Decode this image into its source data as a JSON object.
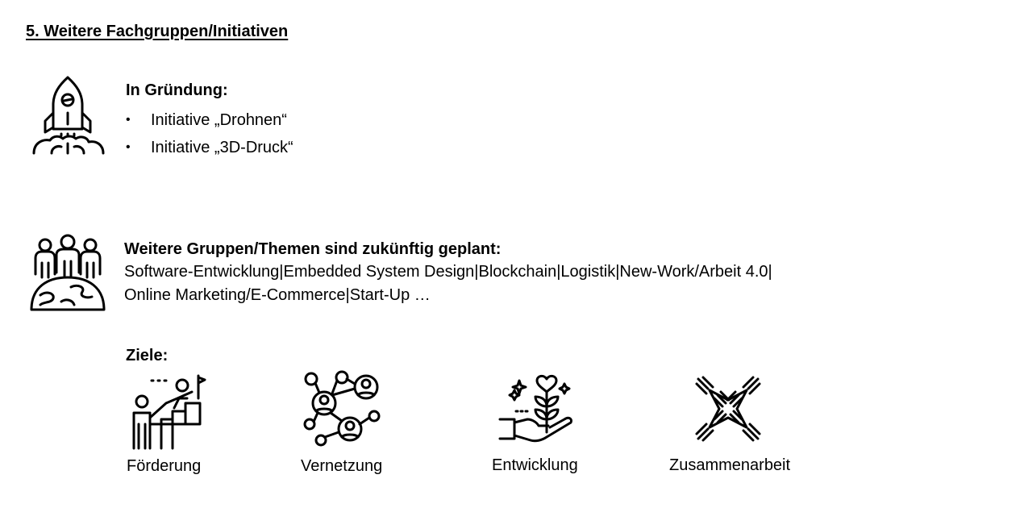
{
  "title": "5. Weitere Fachgruppen/Initiativen",
  "founding": {
    "heading": "In Gründung:",
    "bullet_symbol": "•",
    "items": [
      "Initiative „Drohnen“",
      "Initiative „3D-Druck“"
    ],
    "icon": "rocket-icon"
  },
  "planned": {
    "heading": "Weitere Gruppen/Themen sind zukünftig geplant:",
    "line1": "Software-Entwicklung|Embedded System Design|Blockchain|Logistik|New-Work/Arbeit 4.0|",
    "line2": "Online Marketing/E-Commerce|Start-Up …",
    "icon": "people-globe-icon"
  },
  "goals": {
    "heading": "Ziele:",
    "items": [
      {
        "label": "Förderung",
        "icon": "growth-stairs-icon"
      },
      {
        "label": "Vernetzung",
        "icon": "network-icon"
      },
      {
        "label": "Entwicklung",
        "icon": "plant-hand-icon"
      },
      {
        "label": "Zusammenarbeit",
        "icon": "hands-together-icon"
      }
    ]
  }
}
